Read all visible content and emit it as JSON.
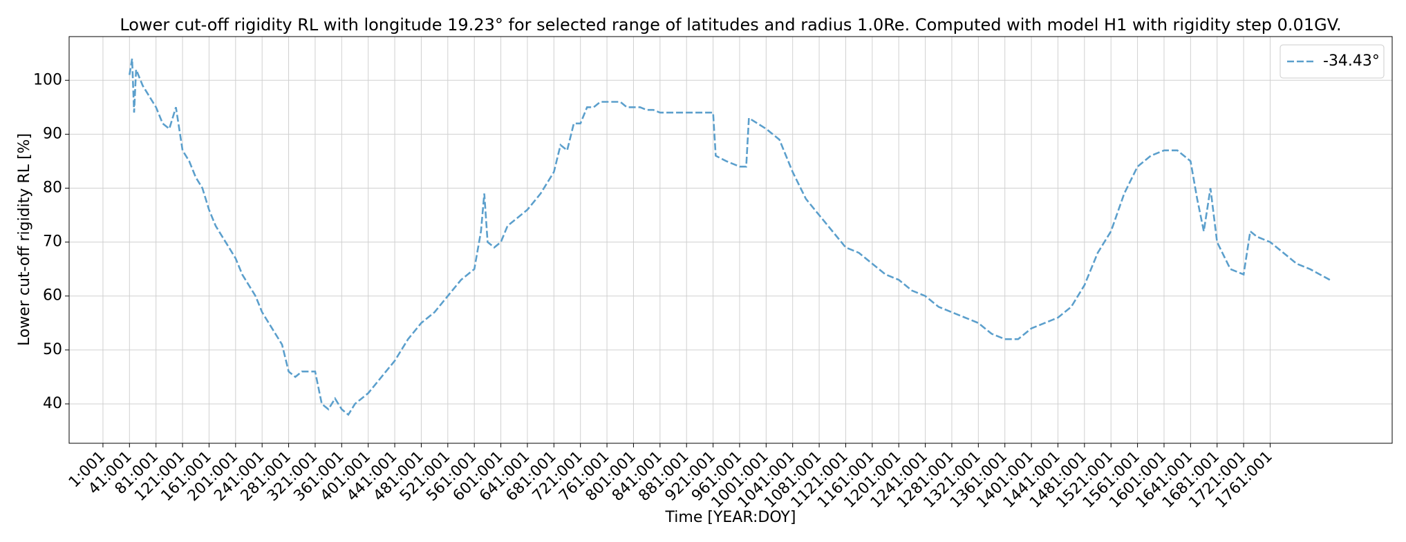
{
  "chart_data": {
    "type": "line",
    "title": "Lower cut-off rigidity RL with longitude 19.23° for selected range of latitudes and radius 1.0Re. Computed with model H1 with rigidity step 0.01GV.",
    "x_label": "Time [YEAR:DOY]",
    "y_label": "Lower cut-off rigidity RL [%]",
    "x": [
      41,
      45,
      48,
      51,
      61,
      71,
      81,
      91,
      101,
      111,
      121,
      131,
      141,
      151,
      161,
      171,
      181,
      191,
      201,
      211,
      221,
      231,
      241,
      251,
      261,
      271,
      281,
      291,
      301,
      311,
      321,
      331,
      341,
      351,
      361,
      371,
      381,
      401,
      421,
      441,
      461,
      481,
      501,
      521,
      541,
      561,
      571,
      576,
      581,
      591,
      601,
      611,
      621,
      641,
      661,
      681,
      691,
      701,
      711,
      721,
      731,
      741,
      751,
      761,
      771,
      781,
      791,
      801,
      811,
      821,
      831,
      841,
      851,
      861,
      881,
      901,
      921,
      925,
      941,
      961,
      971,
      975,
      1001,
      1021,
      1041,
      1061,
      1081,
      1101,
      1121,
      1141,
      1161,
      1181,
      1201,
      1221,
      1241,
      1261,
      1281,
      1301,
      1321,
      1341,
      1361,
      1381,
      1401,
      1421,
      1441,
      1461,
      1481,
      1501,
      1521,
      1541,
      1561,
      1581,
      1601,
      1621,
      1641,
      1651,
      1661,
      1671,
      1681,
      1701,
      1721,
      1731,
      1741,
      1761,
      1781,
      1801,
      1821,
      1851
    ],
    "series": [
      {
        "name": "-34.43°",
        "color": "#5b9fcc",
        "values": [
          101,
          104,
          94,
          102,
          99,
          97,
          95,
          92,
          91,
          95,
          87,
          85,
          82,
          80,
          76,
          73,
          71,
          69,
          67,
          64,
          62,
          60,
          57,
          55,
          53,
          51,
          46,
          45,
          46,
          46,
          46,
          40,
          39,
          41,
          39,
          38,
          40,
          42,
          45,
          48,
          52,
          55,
          57,
          60,
          63,
          65,
          72,
          79,
          70,
          69,
          70,
          73,
          74,
          76,
          79,
          83,
          88,
          87,
          92,
          92,
          95,
          95,
          96,
          96,
          96,
          96,
          95,
          95,
          95,
          94.5,
          94.5,
          94,
          94,
          94,
          94,
          94,
          94,
          86,
          85,
          84,
          84,
          93,
          91,
          89,
          83,
          78,
          75,
          72,
          69,
          68,
          66,
          64,
          63,
          61,
          60,
          58,
          57,
          56,
          55,
          53,
          52,
          52,
          54,
          55,
          56,
          58,
          62,
          68,
          72,
          79,
          84,
          86,
          87,
          87,
          85,
          78,
          72,
          80,
          70,
          65,
          64,
          72,
          71,
          70,
          68,
          66,
          65,
          63
        ]
      }
    ],
    "xlim": [
      -50,
      1945
    ],
    "ylim": [
      32.7,
      108.1
    ],
    "xticks": [
      {
        "value": 1,
        "label": "1:001"
      },
      {
        "value": 41,
        "label": "41:001"
      },
      {
        "value": 81,
        "label": "81:001"
      },
      {
        "value": 121,
        "label": "121:001"
      },
      {
        "value": 161,
        "label": "161:001"
      },
      {
        "value": 201,
        "label": "201:001"
      },
      {
        "value": 241,
        "label": "241:001"
      },
      {
        "value": 281,
        "label": "281:001"
      },
      {
        "value": 321,
        "label": "321:001"
      },
      {
        "value": 361,
        "label": "361:001"
      },
      {
        "value": 401,
        "label": "401:001"
      },
      {
        "value": 441,
        "label": "441:001"
      },
      {
        "value": 481,
        "label": "481:001"
      },
      {
        "value": 521,
        "label": "521:001"
      },
      {
        "value": 561,
        "label": "561:001"
      },
      {
        "value": 601,
        "label": "601:001"
      },
      {
        "value": 641,
        "label": "641:001"
      },
      {
        "value": 681,
        "label": "681:001"
      },
      {
        "value": 721,
        "label": "721:001"
      },
      {
        "value": 761,
        "label": "761:001"
      },
      {
        "value": 801,
        "label": "801:001"
      },
      {
        "value": 841,
        "label": "841:001"
      },
      {
        "value": 881,
        "label": "881:001"
      },
      {
        "value": 921,
        "label": "921:001"
      },
      {
        "value": 961,
        "label": "961:001"
      },
      {
        "value": 1001,
        "label": "1001:001"
      },
      {
        "value": 1041,
        "label": "1041:001"
      },
      {
        "value": 1081,
        "label": "1081:001"
      },
      {
        "value": 1121,
        "label": "1121:001"
      },
      {
        "value": 1161,
        "label": "1161:001"
      },
      {
        "value": 1201,
        "label": "1201:001"
      },
      {
        "value": 1241,
        "label": "1241:001"
      },
      {
        "value": 1281,
        "label": "1281:001"
      },
      {
        "value": 1321,
        "label": "1321:001"
      },
      {
        "value": 1361,
        "label": "1361:001"
      },
      {
        "value": 1401,
        "label": "1401:001"
      },
      {
        "value": 1441,
        "label": "1441:001"
      },
      {
        "value": 1481,
        "label": "1481:001"
      },
      {
        "value": 1521,
        "label": "1521:001"
      },
      {
        "value": 1561,
        "label": "1561:001"
      },
      {
        "value": 1601,
        "label": "1601:001"
      },
      {
        "value": 1641,
        "label": "1641:001"
      },
      {
        "value": 1681,
        "label": "1681:001"
      },
      {
        "value": 1721,
        "label": "1721:001"
      },
      {
        "value": 1761,
        "label": "1761:001"
      }
    ],
    "yticks": [
      40,
      50,
      60,
      70,
      80,
      90,
      100
    ],
    "grid": true,
    "legend": "upper right"
  }
}
